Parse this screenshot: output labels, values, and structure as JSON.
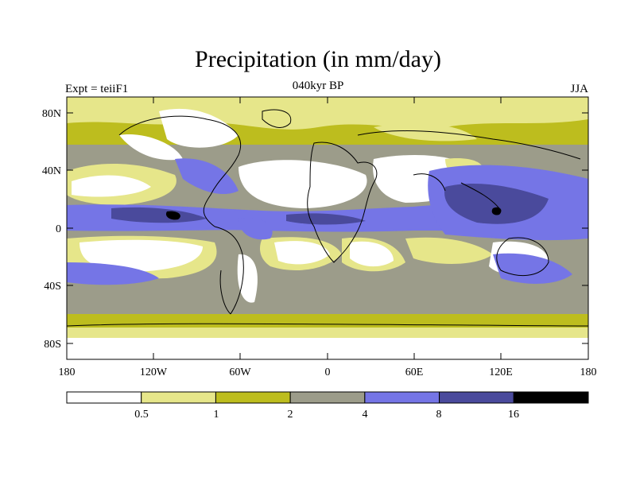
{
  "title": "Precipitation (in mm/day)",
  "subtitle_left": "Expt = teiiF1",
  "subtitle_center": "040kyr BP",
  "subtitle_right": "JJA",
  "lat_ticks": [
    "80N",
    "40N",
    "0",
    "40S",
    "80S"
  ],
  "lon_ticks": [
    "180",
    "120W",
    "60W",
    "0",
    "60E",
    "120E",
    "180"
  ],
  "colorbar": {
    "labels": [
      "0.5",
      "1",
      "2",
      "4",
      "8",
      "16"
    ],
    "colors": [
      "#ffffff",
      "#e6e68a",
      "#bdbd1e",
      "#9c9c8a",
      "#7575e6",
      "#4a4a9c",
      "#000000"
    ]
  }
}
